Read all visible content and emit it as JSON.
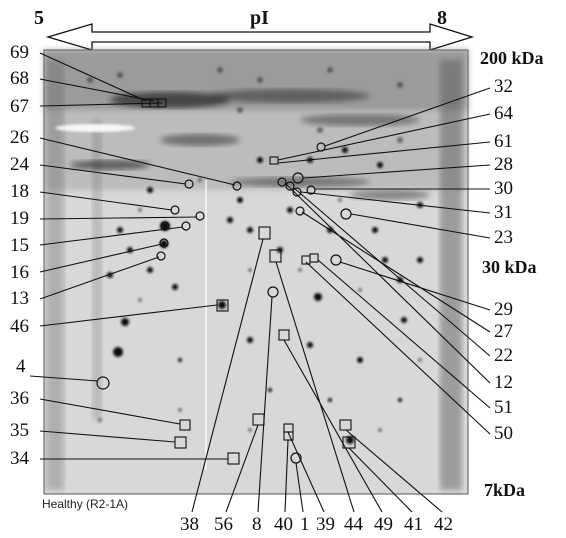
{
  "header": {
    "left": "5",
    "center": "pI",
    "right": "8"
  },
  "mw_markers": [
    "200 kDa",
    "30 kDa",
    "7kDa"
  ],
  "caption": "Healthy (R2-1A)",
  "left_labels": [
    "69",
    "68",
    "67",
    "26",
    "24",
    "18",
    "19",
    "15",
    "16",
    "13",
    "46",
    "4",
    "36",
    "35",
    "34"
  ],
  "right_labels": [
    "32",
    "64",
    "61",
    "28",
    "30",
    "31",
    "23",
    "29",
    "27",
    "22",
    "12",
    "51",
    "50"
  ],
  "bottom_labels": [
    "38",
    "56",
    "8",
    "40",
    "1",
    "39",
    "44",
    "49",
    "41",
    "42"
  ]
}
